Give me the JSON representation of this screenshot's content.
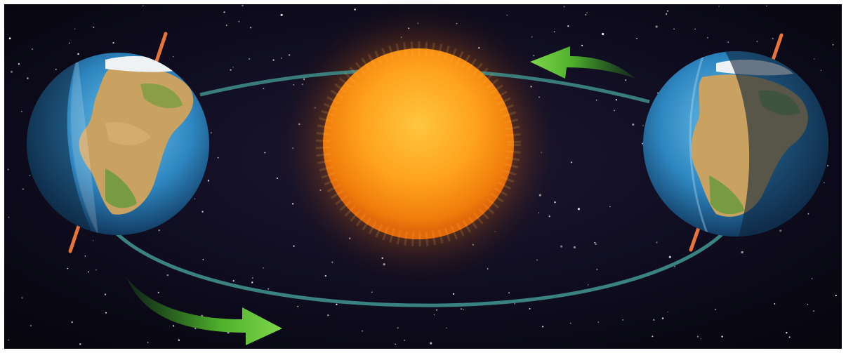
{
  "scene": {
    "description_visible_text": "",
    "colors": {
      "frame": "#ffffff",
      "space": "#0b0a1a",
      "space_glow": "#1a1630",
      "sun_core": "#ffb320",
      "sun_edge": "#e8780a",
      "sun_halo": "#ff9a1a",
      "orbit": "#3f8f8c",
      "arrow": "#5fc13a",
      "arrow_dark": "#2f8a1d",
      "axis": "#e8743a",
      "ocean": "#2a7fb8",
      "ocean_light": "#5fb6e0",
      "land": "#c8a060",
      "land_green": "#5c8a3a",
      "ice": "#eef2f4",
      "night": "#0d2238"
    },
    "icons": [
      "sun-icon",
      "earth-left-icon",
      "earth-right-icon",
      "orbit-ring",
      "arrow-bottom-left-icon",
      "arrow-top-right-icon"
    ]
  }
}
